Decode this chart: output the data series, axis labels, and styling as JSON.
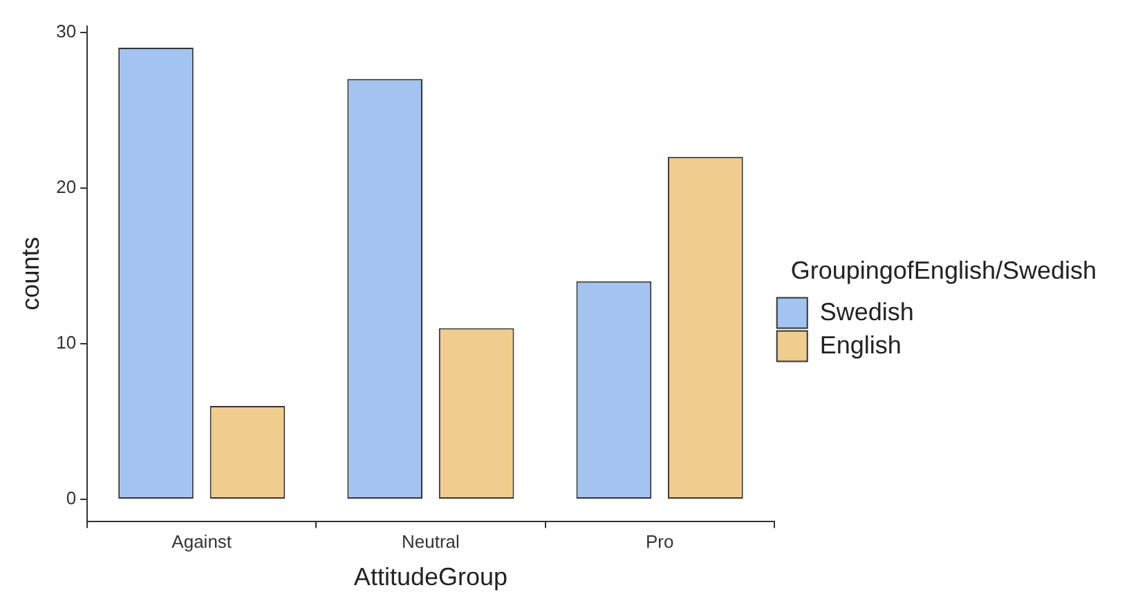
{
  "chart_data": {
    "type": "bar",
    "xlabel": "AttitudeGroup",
    "ylabel": "counts",
    "legend_title": "GroupingofEnglish/Swedish",
    "categories": [
      "Against",
      "Neutral",
      "Pro"
    ],
    "series": [
      {
        "name": "Swedish",
        "color": "#a3c3f0",
        "values": [
          29,
          27,
          14
        ]
      },
      {
        "name": "English",
        "color": "#f0cd8e",
        "values": [
          6,
          11,
          22
        ]
      }
    ],
    "ylim": [
      -1.4,
      30.4
    ],
    "yticks": [
      0,
      10,
      20,
      30
    ],
    "grid": false,
    "legend": "right"
  }
}
